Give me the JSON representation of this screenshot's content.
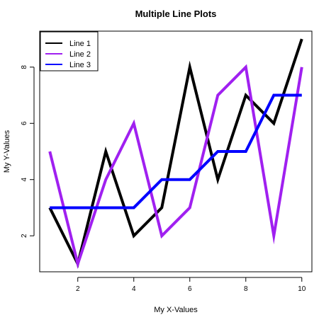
{
  "chart_data": {
    "type": "line",
    "title": "Multiple Line Plots",
    "xlabel": "My X-Values",
    "ylabel": "My Y-Values",
    "xlim": [
      0.64,
      10.36
    ],
    "ylim": [
      0.72,
      9.28
    ],
    "x": [
      1,
      2,
      3,
      4,
      5,
      6,
      7,
      8,
      9,
      10
    ],
    "x_ticks": [
      2,
      4,
      6,
      8,
      10
    ],
    "y_ticks": [
      2,
      4,
      6,
      8
    ],
    "series": [
      {
        "name": "Line 1",
        "color": "#000000",
        "values": [
          3,
          1,
          5,
          2,
          3,
          8,
          4,
          7,
          6,
          9
        ]
      },
      {
        "name": "Line 2",
        "color": "#a020f0",
        "values": [
          5,
          1,
          4,
          6,
          2,
          3,
          7,
          8,
          2,
          8
        ]
      },
      {
        "name": "Line 3",
        "color": "#0000ff",
        "values": [
          3,
          3,
          3,
          3,
          4,
          4,
          5,
          5,
          7,
          7
        ]
      }
    ],
    "legend_position": "top-left",
    "grid": false
  }
}
